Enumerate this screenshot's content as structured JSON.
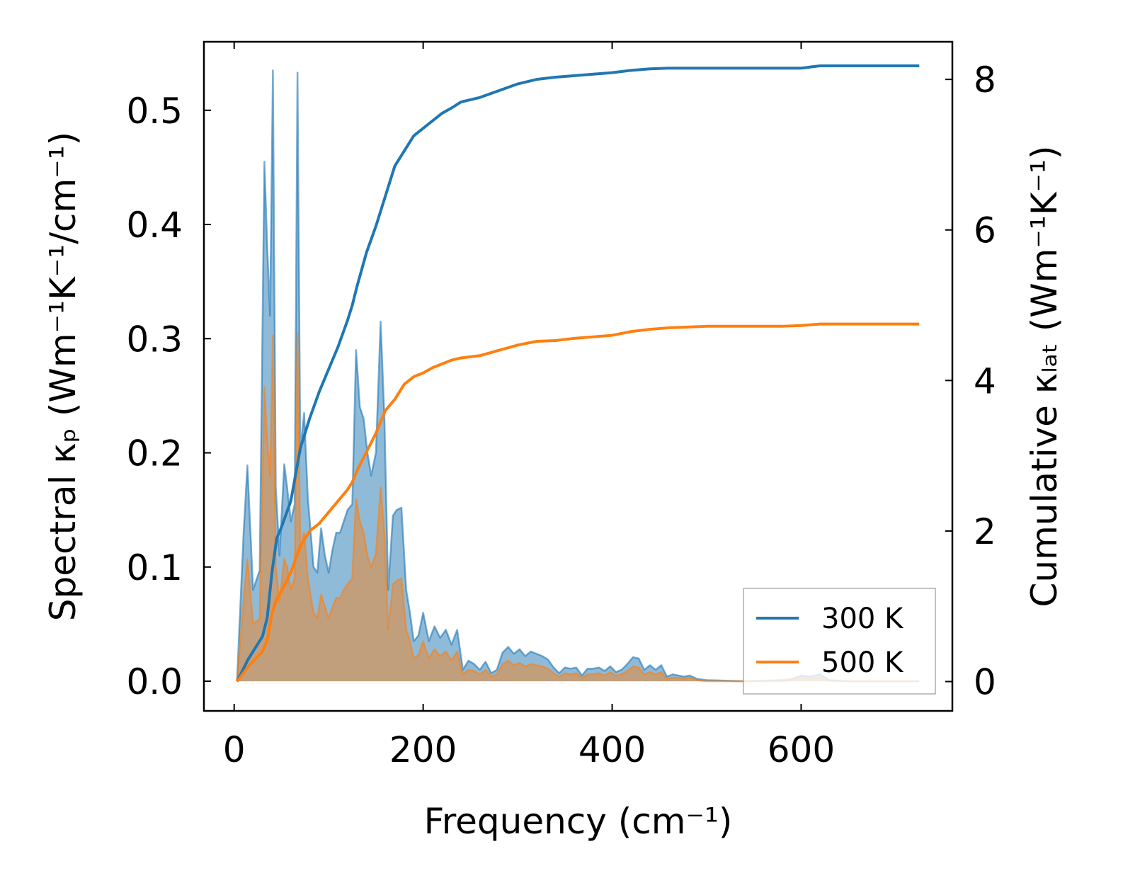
{
  "chart_data": {
    "type": "line+area",
    "xlabel": "Frequency (cm⁻¹)",
    "ylabel_left": "Spectral κₚ (Wm⁻¹K⁻¹/cm⁻¹)",
    "ylabel_right": "Cumulative κₗₐₜ (Wm⁻¹K⁻¹)",
    "xlim": [
      -32,
      760
    ],
    "ylim_left": [
      -0.026,
      0.56
    ],
    "ylim_right": [
      -0.39,
      8.5
    ],
    "x_ticks": [
      0,
      200,
      400,
      600
    ],
    "x_tick_labels": [
      "0",
      "200",
      "400",
      "600"
    ],
    "y_left_ticks": [
      0.0,
      0.1,
      0.2,
      0.3,
      0.4,
      0.5
    ],
    "y_left_tick_labels": [
      "0.0",
      "0.1",
      "0.2",
      "0.3",
      "0.4",
      "0.5"
    ],
    "y_right_ticks": [
      0,
      2,
      4,
      6,
      8
    ],
    "y_right_tick_labels": [
      "0",
      "2",
      "4",
      "6",
      "8"
    ],
    "legend_position": "lower-right",
    "colors": {
      "s300": "#1f77b4",
      "s500": "#ff7f0e"
    },
    "series": [
      {
        "name": "300 K",
        "color": "#1f77b4",
        "spectral": {
          "x": [
            3,
            10,
            14,
            20,
            27,
            32,
            35,
            38,
            41,
            44,
            48,
            53,
            56,
            60,
            64,
            67,
            70,
            74,
            78,
            84,
            88,
            92,
            96,
            100,
            104,
            108,
            112,
            116,
            120,
            125,
            129,
            133,
            137,
            141,
            145,
            150,
            155,
            159,
            163,
            168,
            172,
            177,
            182,
            186,
            190,
            195,
            200,
            206,
            212,
            218,
            224,
            230,
            236,
            242,
            248,
            254,
            260,
            266,
            272,
            278,
            284,
            290,
            296,
            302,
            308,
            314,
            320,
            326,
            332,
            338,
            344,
            350,
            356,
            362,
            368,
            374,
            380,
            386,
            392,
            398,
            404,
            410,
            416,
            422,
            428,
            434,
            440,
            446,
            452,
            458,
            464,
            470,
            476,
            482,
            490,
            500,
            540,
            580,
            590,
            600,
            610,
            620,
            630,
            650,
            700,
            725
          ],
          "y": [
            0.0,
            0.13,
            0.189,
            0.08,
            0.097,
            0.455,
            0.38,
            0.32,
            0.535,
            0.17,
            0.11,
            0.19,
            0.17,
            0.14,
            0.155,
            0.533,
            0.2,
            0.235,
            0.16,
            0.1,
            0.095,
            0.134,
            0.11,
            0.095,
            0.115,
            0.13,
            0.13,
            0.14,
            0.15,
            0.155,
            0.29,
            0.24,
            0.23,
            0.2,
            0.18,
            0.2,
            0.315,
            0.23,
            0.08,
            0.145,
            0.15,
            0.152,
            0.08,
            0.06,
            0.035,
            0.04,
            0.06,
            0.035,
            0.048,
            0.038,
            0.045,
            0.032,
            0.045,
            0.01,
            0.018,
            0.015,
            0.01,
            0.017,
            0.007,
            0.01,
            0.025,
            0.03,
            0.024,
            0.028,
            0.022,
            0.026,
            0.024,
            0.022,
            0.019,
            0.012,
            0.007,
            0.012,
            0.011,
            0.012,
            0.005,
            0.011,
            0.011,
            0.012,
            0.009,
            0.013,
            0.008,
            0.01,
            0.015,
            0.021,
            0.02,
            0.01,
            0.014,
            0.01,
            0.014,
            0.004,
            0.006,
            0.005,
            0.004,
            0.005,
            0.002,
            0.001,
            0.0,
            0.001,
            0.002,
            0.005,
            0.004,
            0.006,
            0.001,
            0.0,
            0.0,
            0.0
          ]
        },
        "cumulative": {
          "x": [
            3,
            15,
            30,
            35,
            40,
            45,
            50,
            60,
            70,
            80,
            90,
            100,
            110,
            120,
            125,
            130,
            140,
            150,
            160,
            170,
            180,
            190,
            200,
            210,
            220,
            230,
            240,
            260,
            280,
            300,
            320,
            340,
            360,
            380,
            400,
            420,
            440,
            460,
            480,
            500,
            540,
            580,
            600,
            620,
            650,
            725
          ],
          "y": [
            0.0,
            0.3,
            0.6,
            0.85,
            1.45,
            1.9,
            2.05,
            2.4,
            3.1,
            3.5,
            3.85,
            4.15,
            4.45,
            4.8,
            5.0,
            5.25,
            5.7,
            6.05,
            6.45,
            6.85,
            7.05,
            7.25,
            7.35,
            7.45,
            7.55,
            7.62,
            7.7,
            7.76,
            7.85,
            7.94,
            8.0,
            8.03,
            8.05,
            8.07,
            8.09,
            8.12,
            8.14,
            8.15,
            8.15,
            8.15,
            8.15,
            8.15,
            8.15,
            8.18,
            8.18,
            8.18
          ]
        }
      },
      {
        "name": "500 K",
        "color": "#ff7f0e",
        "spectral": {
          "x": [
            3,
            10,
            14,
            20,
            27,
            32,
            35,
            38,
            41,
            44,
            48,
            53,
            56,
            60,
            64,
            67,
            70,
            74,
            78,
            84,
            88,
            92,
            96,
            100,
            104,
            108,
            112,
            116,
            120,
            125,
            129,
            133,
            137,
            141,
            145,
            150,
            155,
            159,
            163,
            168,
            172,
            177,
            182,
            186,
            190,
            195,
            200,
            206,
            212,
            218,
            224,
            230,
            236,
            242,
            248,
            254,
            260,
            266,
            272,
            278,
            284,
            290,
            296,
            302,
            308,
            314,
            320,
            326,
            332,
            338,
            344,
            350,
            356,
            362,
            368,
            374,
            380,
            386,
            392,
            398,
            404,
            410,
            416,
            422,
            428,
            434,
            440,
            446,
            452,
            458,
            464,
            470,
            476,
            482,
            490,
            500,
            540,
            580,
            590,
            600,
            610,
            620,
            630,
            650,
            700,
            725
          ],
          "y": [
            0.0,
            0.07,
            0.107,
            0.05,
            0.055,
            0.258,
            0.21,
            0.18,
            0.303,
            0.1,
            0.07,
            0.107,
            0.1,
            0.08,
            0.09,
            0.305,
            0.115,
            0.13,
            0.09,
            0.06,
            0.055,
            0.076,
            0.065,
            0.055,
            0.065,
            0.073,
            0.073,
            0.08,
            0.085,
            0.09,
            0.16,
            0.14,
            0.13,
            0.11,
            0.1,
            0.112,
            0.17,
            0.13,
            0.045,
            0.085,
            0.088,
            0.09,
            0.045,
            0.035,
            0.02,
            0.023,
            0.035,
            0.02,
            0.028,
            0.022,
            0.026,
            0.018,
            0.026,
            0.006,
            0.01,
            0.009,
            0.006,
            0.01,
            0.004,
            0.006,
            0.015,
            0.018,
            0.014,
            0.016,
            0.013,
            0.015,
            0.014,
            0.013,
            0.011,
            0.007,
            0.004,
            0.007,
            0.006,
            0.007,
            0.003,
            0.006,
            0.006,
            0.007,
            0.005,
            0.008,
            0.005,
            0.006,
            0.009,
            0.013,
            0.012,
            0.006,
            0.008,
            0.006,
            0.008,
            0.002,
            0.003,
            0.003,
            0.002,
            0.003,
            0.001,
            0.0,
            0.0,
            0.0,
            0.001,
            0.003,
            0.002,
            0.003,
            0.0,
            0.0,
            0.0,
            0.0
          ]
        },
        "cumulative": {
          "x": [
            3,
            15,
            30,
            35,
            40,
            45,
            50,
            60,
            70,
            80,
            90,
            100,
            110,
            120,
            125,
            130,
            140,
            150,
            160,
            170,
            180,
            190,
            200,
            210,
            220,
            230,
            240,
            260,
            280,
            300,
            320,
            340,
            360,
            380,
            400,
            420,
            440,
            460,
            480,
            500,
            540,
            580,
            600,
            620,
            650,
            725
          ],
          "y": [
            0.0,
            0.2,
            0.4,
            0.55,
            0.9,
            1.1,
            1.2,
            1.45,
            1.8,
            2.0,
            2.1,
            2.25,
            2.4,
            2.55,
            2.65,
            2.8,
            3.05,
            3.3,
            3.6,
            3.75,
            3.95,
            4.05,
            4.1,
            4.17,
            4.22,
            4.27,
            4.3,
            4.33,
            4.4,
            4.47,
            4.52,
            4.53,
            4.56,
            4.58,
            4.6,
            4.65,
            4.68,
            4.7,
            4.71,
            4.72,
            4.72,
            4.72,
            4.73,
            4.75,
            4.75,
            4.75
          ]
        }
      }
    ]
  }
}
